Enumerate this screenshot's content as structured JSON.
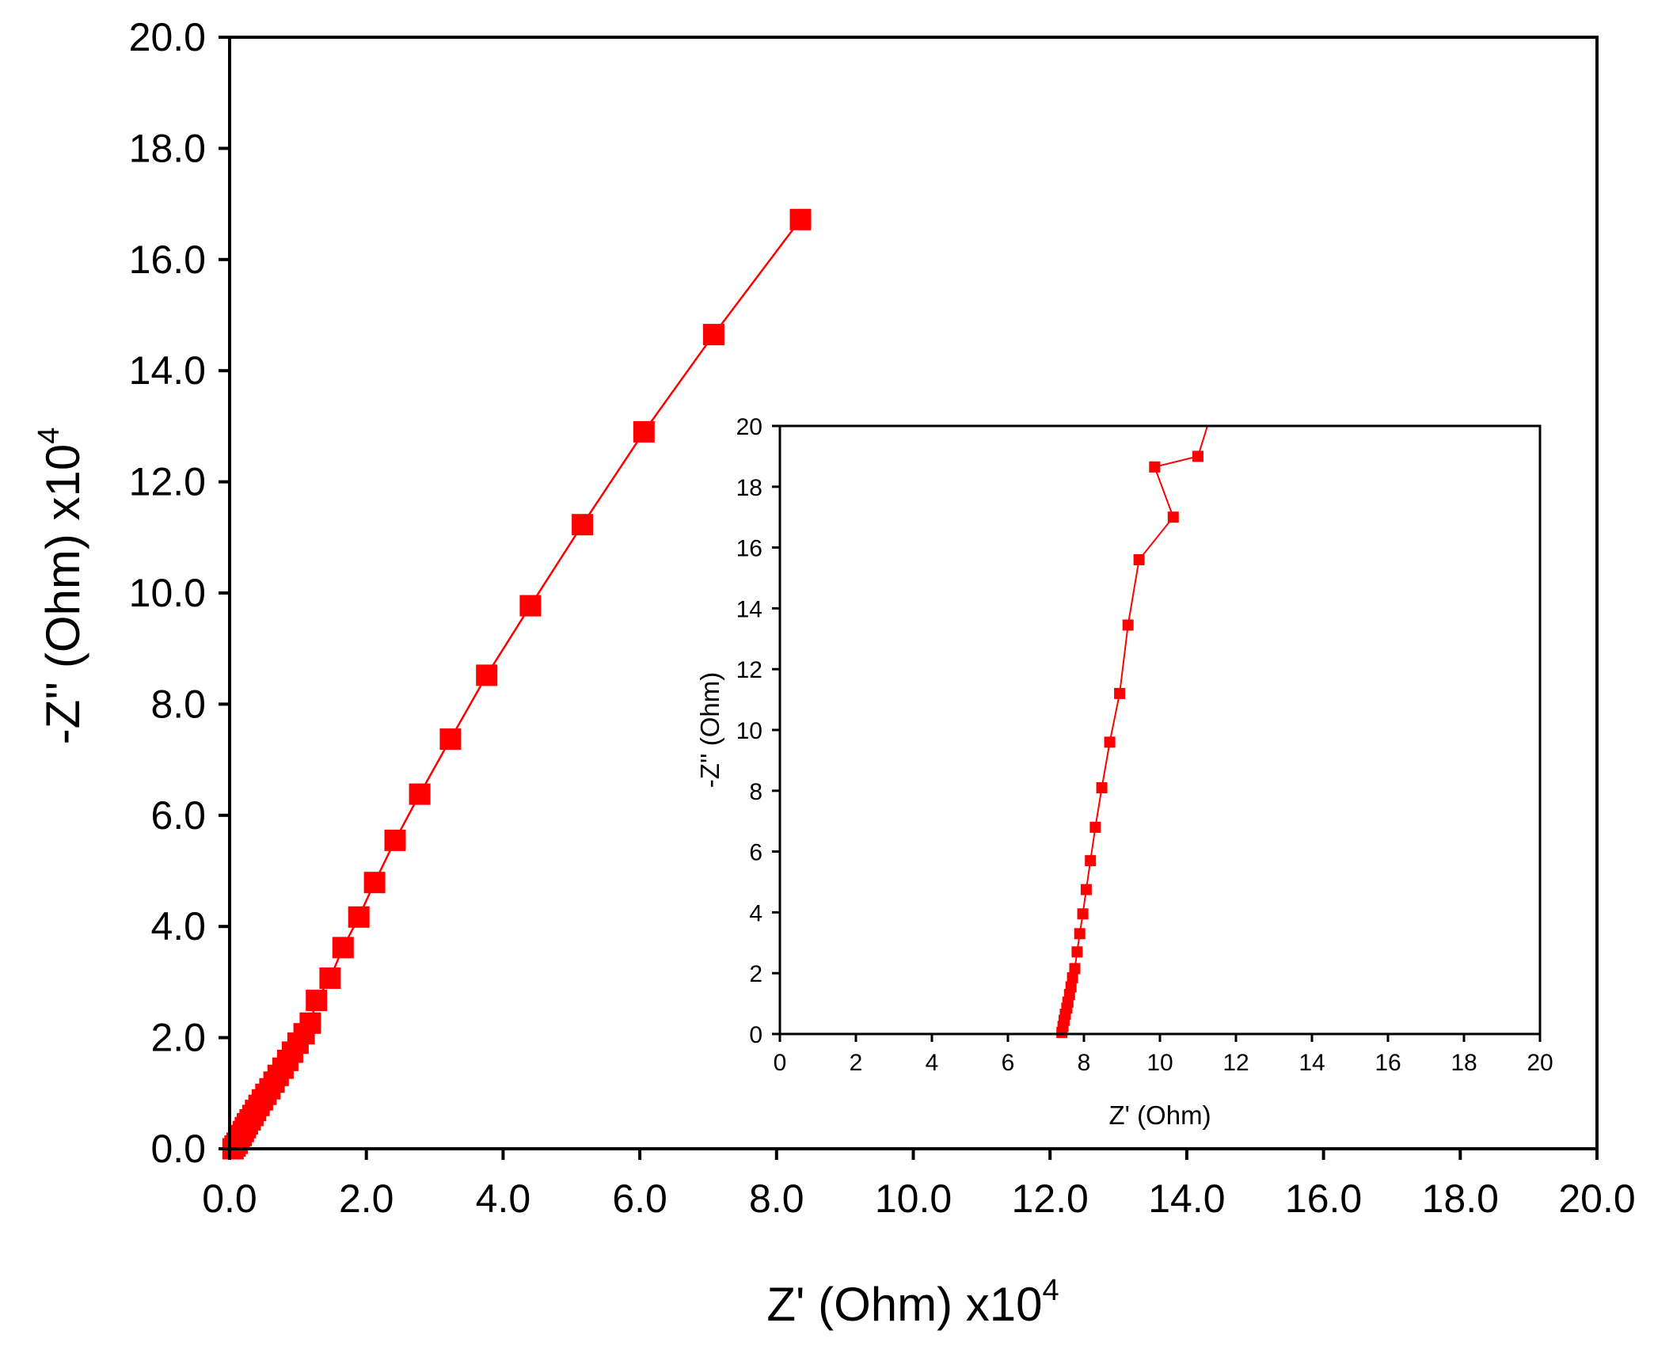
{
  "chart_data": [
    {
      "type": "scatter",
      "name": "main-plot",
      "xlabel": "Z' (Ohm) x10",
      "xlabel_exp": "4",
      "ylabel": "-Z'' (Ohm) x10",
      "ylabel_exp": "4",
      "xlim": [
        0,
        20
      ],
      "ylim": [
        0,
        20
      ],
      "xticks": [
        0,
        2,
        4,
        6,
        8,
        10,
        12,
        14,
        16,
        18,
        20
      ],
      "xtick_labels": [
        "0.0",
        "2.0",
        "4.0",
        "6.0",
        "8.0",
        "10.0",
        "12.0",
        "14.0",
        "16.0",
        "18.0",
        "20.0"
      ],
      "yticks": [
        0,
        2,
        4,
        6,
        8,
        10,
        12,
        14,
        16,
        18,
        20
      ],
      "ytick_labels": [
        "0.0",
        "2.0",
        "4.0",
        "6.0",
        "8.0",
        "10.0",
        "12.0",
        "14.0",
        "16.0",
        "18.0",
        "20.0"
      ],
      "grid": false,
      "color": "#ff0000",
      "marker": "square",
      "series": [
        {
          "name": "impedance",
          "x": [
            0.05,
            0.08,
            0.11,
            0.14,
            0.17,
            0.2,
            0.23,
            0.26,
            0.3,
            0.34,
            0.38,
            0.43,
            0.48,
            0.53,
            0.59,
            0.65,
            0.71,
            0.78,
            0.85,
            0.92,
            1.0,
            1.09,
            1.18,
            1.27,
            1.47,
            1.66,
            1.89,
            2.12,
            2.42,
            2.78,
            3.23,
            3.76,
            4.4,
            5.16,
            6.06,
            7.08,
            8.35
          ],
          "y": [
            0.0,
            0.05,
            0.1,
            0.17,
            0.24,
            0.31,
            0.38,
            0.45,
            0.52,
            0.6,
            0.69,
            0.78,
            0.88,
            0.98,
            1.08,
            1.2,
            1.32,
            1.45,
            1.59,
            1.74,
            1.9,
            2.07,
            2.26,
            2.67,
            3.07,
            3.62,
            4.17,
            4.79,
            5.55,
            6.38,
            7.37,
            8.52,
            9.77,
            11.23,
            12.9,
            14.65,
            16.72
          ]
        }
      ]
    },
    {
      "type": "scatter",
      "name": "inset-plot",
      "xlabel": "Z' (Ohm)",
      "ylabel": "-Z'' (Ohm)",
      "xlim": [
        0,
        20
      ],
      "ylim": [
        0,
        20
      ],
      "xticks": [
        0,
        2,
        4,
        6,
        8,
        10,
        12,
        14,
        16,
        18,
        20
      ],
      "xtick_labels": [
        "0",
        "2",
        "4",
        "6",
        "8",
        "10",
        "12",
        "14",
        "16",
        "18",
        "20"
      ],
      "yticks": [
        0,
        2,
        4,
        6,
        8,
        10,
        12,
        14,
        16,
        18,
        20
      ],
      "ytick_labels": [
        "0",
        "2",
        "4",
        "6",
        "8",
        "10",
        "12",
        "14",
        "16",
        "18",
        "20"
      ],
      "grid": false,
      "color": "#ff0000",
      "marker": "square",
      "line_end": [
        11.25,
        20
      ],
      "series": [
        {
          "name": "impedance-zoom",
          "x": [
            7.42,
            7.45,
            7.48,
            7.51,
            7.55,
            7.58,
            7.62,
            7.66,
            7.7,
            7.76,
            7.82,
            7.89,
            7.97,
            8.06,
            8.17,
            8.3,
            8.47,
            8.68,
            8.94,
            9.16,
            9.45,
            9.86,
            10.35,
            11.0
          ],
          "y": [
            0.05,
            0.25,
            0.45,
            0.65,
            0.85,
            1.05,
            1.3,
            1.55,
            1.85,
            2.15,
            2.7,
            3.3,
            3.95,
            4.75,
            5.7,
            6.8,
            8.1,
            9.6,
            11.2,
            13.45,
            15.6,
            18.65,
            17.0,
            19.0
          ]
        }
      ]
    }
  ]
}
